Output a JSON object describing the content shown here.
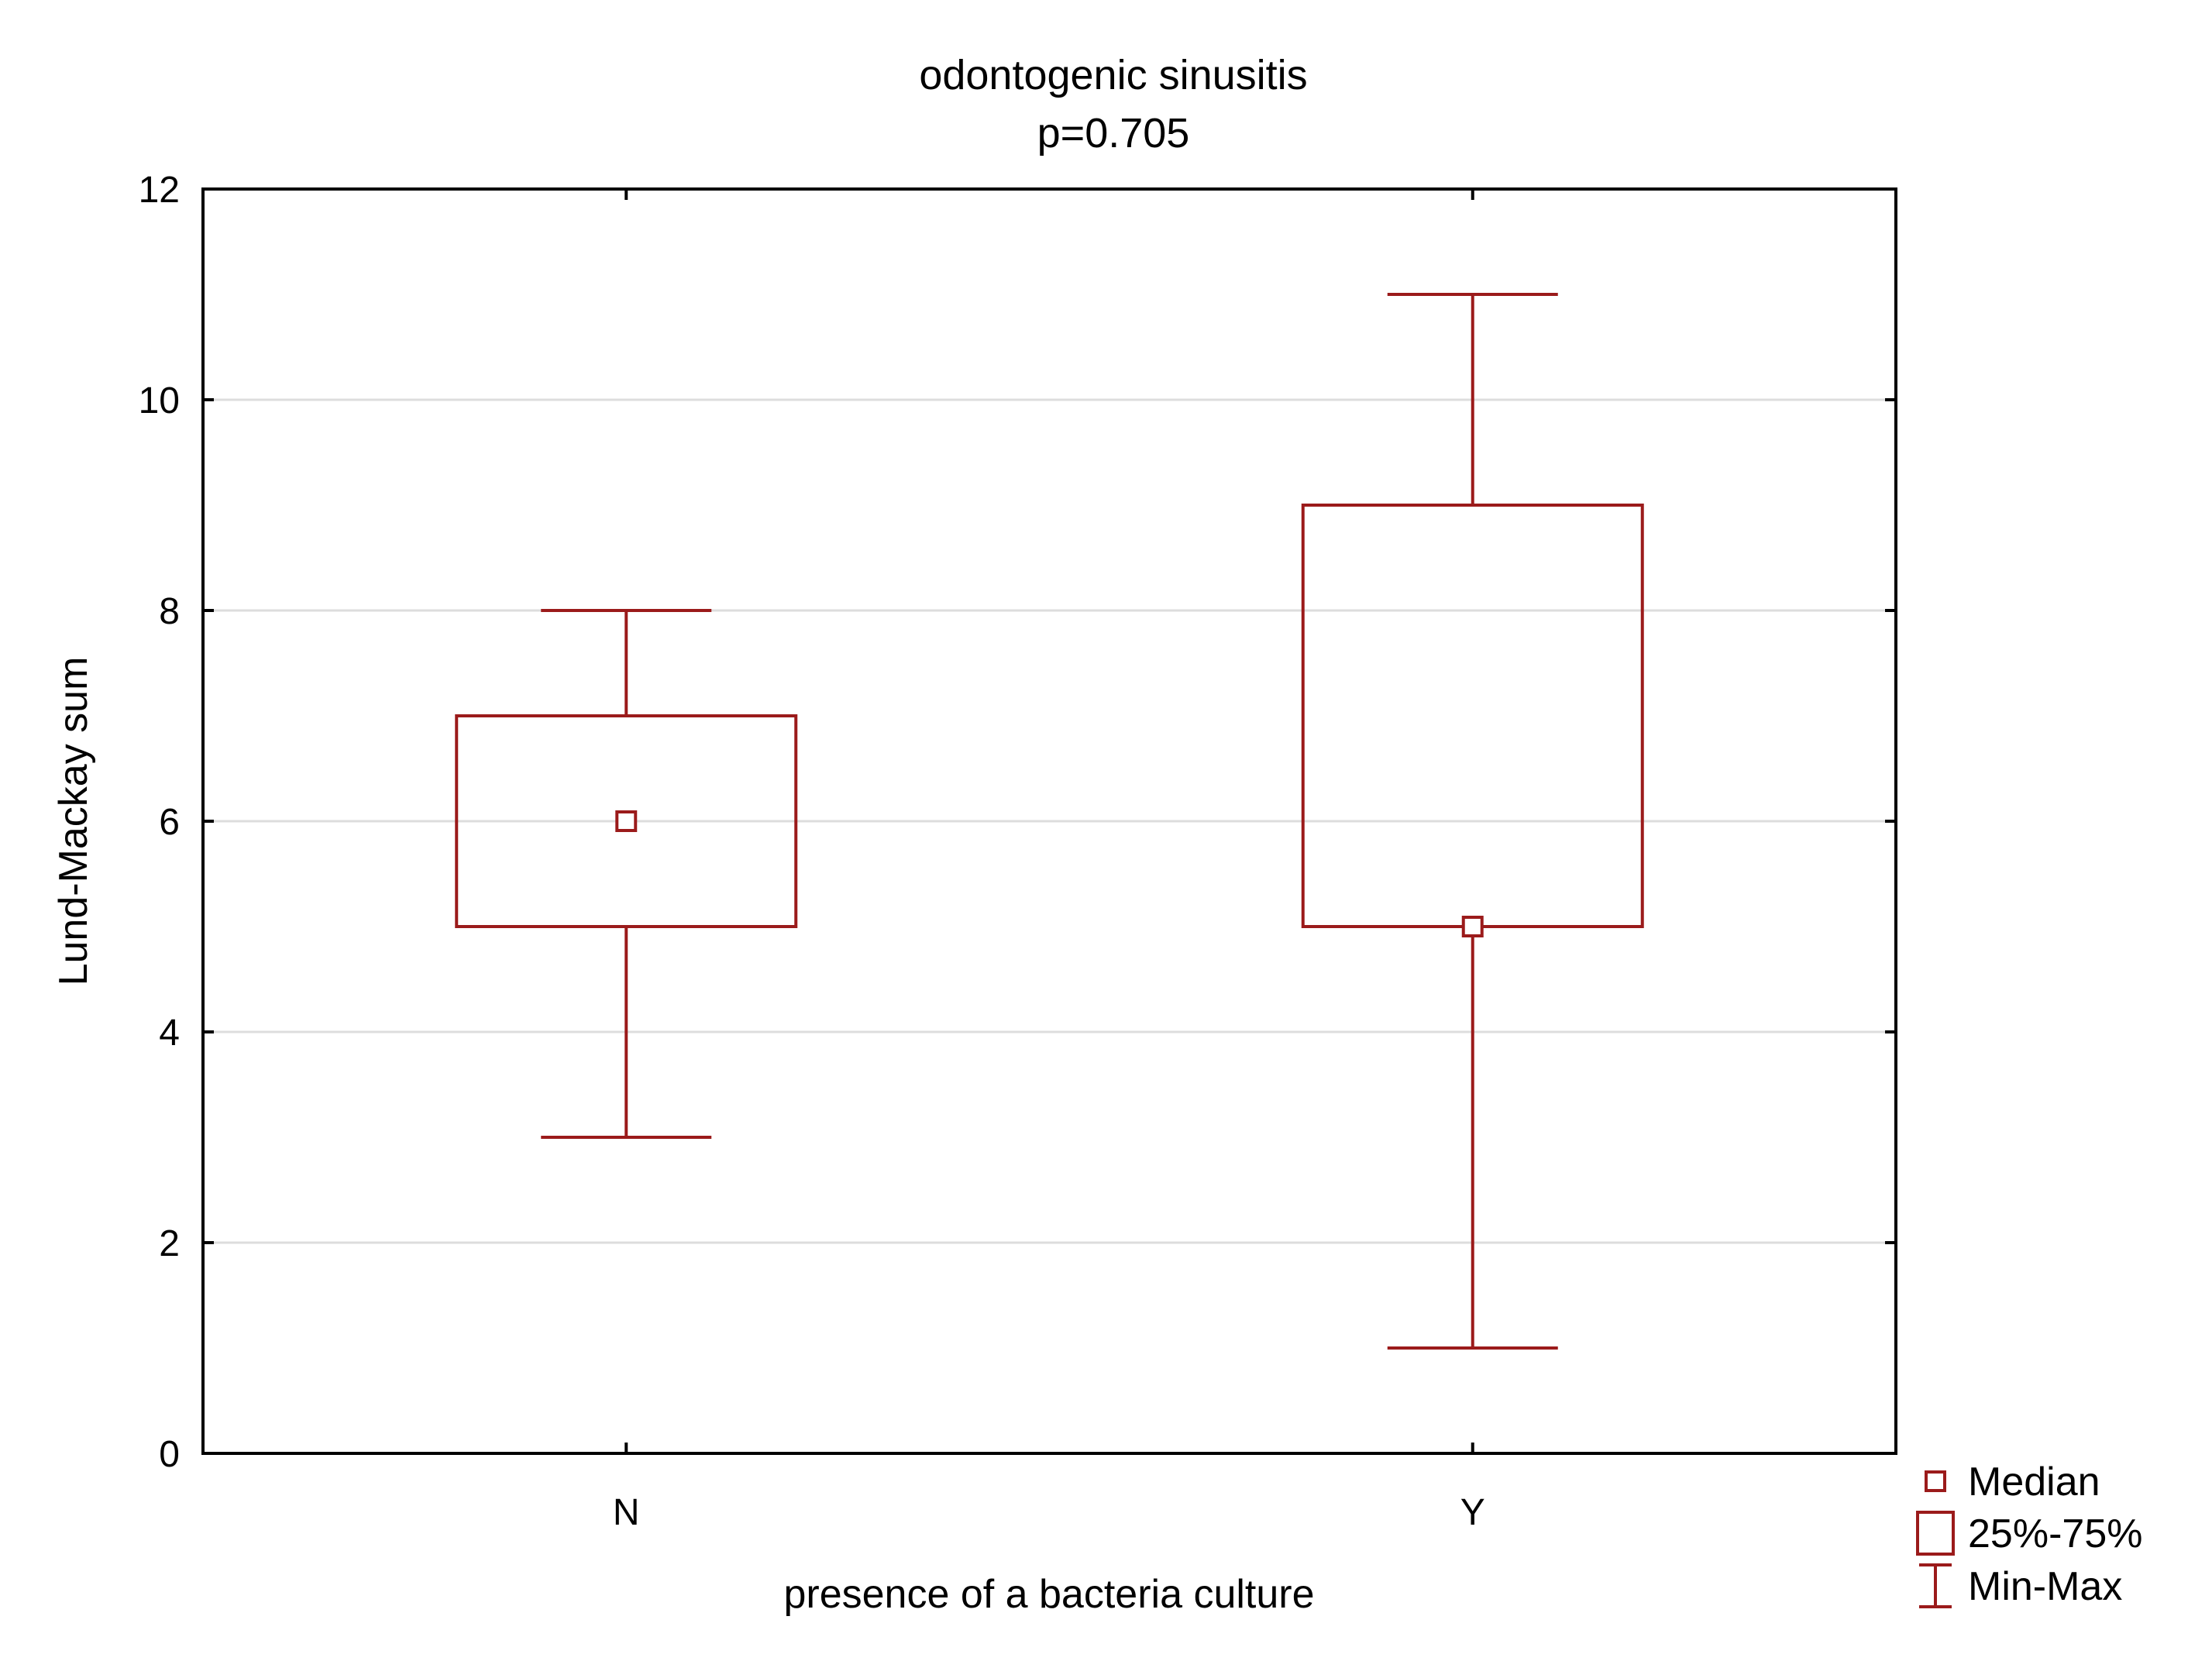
{
  "chart_data": {
    "type": "box",
    "title": "odontogenic sinusitis",
    "subtitle": "p=0.705",
    "xlabel": "presence of a bacteria culture",
    "ylabel": "Lund-Mackay sum",
    "ylim": [
      0,
      12
    ],
    "yticks": [
      "0",
      "2",
      "4",
      "6",
      "8",
      "10",
      "12"
    ],
    "grid": true,
    "legend_position": "bottom-right, outside plot",
    "color": "#9b1b1b",
    "categories": [
      "N",
      "Y"
    ],
    "boxes": [
      {
        "category": "N",
        "min": 3,
        "q1": 5,
        "median": 6,
        "q3": 7,
        "max": 8
      },
      {
        "category": "Y",
        "min": 1,
        "q1": 5,
        "median": 5,
        "q3": 9,
        "max": 11
      }
    ],
    "legend": [
      {
        "label": "Median",
        "icon": "small-square-icon"
      },
      {
        "label": "25%-75%",
        "icon": "box-icon"
      },
      {
        "label": "Min-Max",
        "icon": "whisker-icon"
      }
    ]
  }
}
